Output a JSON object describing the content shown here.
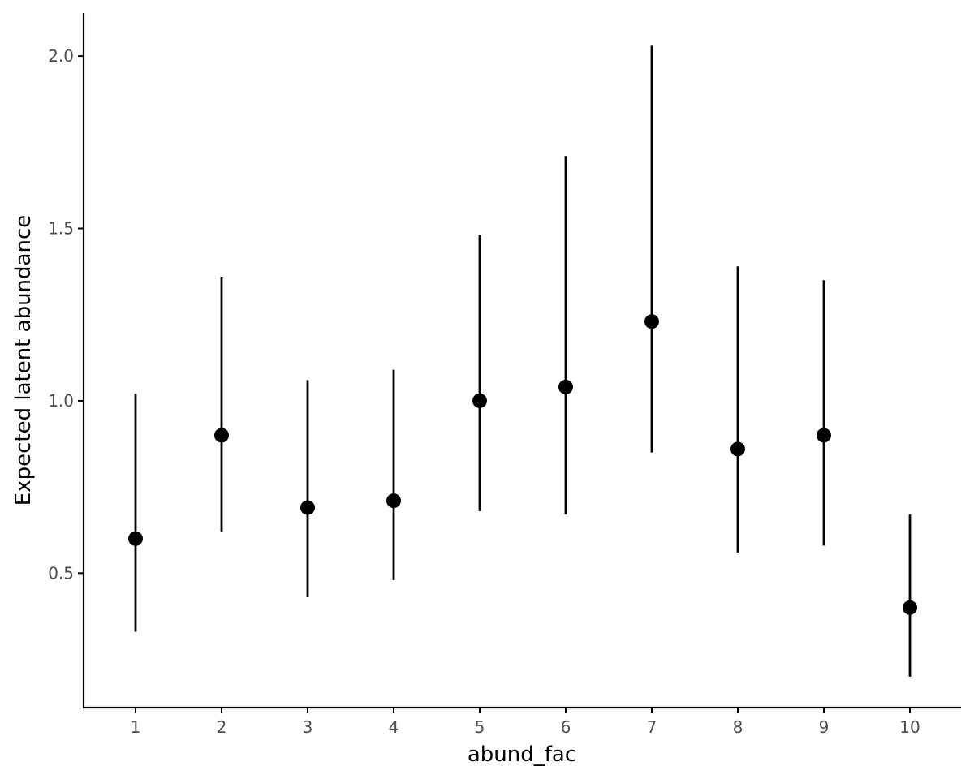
{
  "chart_data": {
    "type": "scatter",
    "subtype": "pointrange",
    "title": "",
    "xlabel": "abund_fac",
    "ylabel": "Expected latent abundance",
    "x": [
      "1",
      "2",
      "3",
      "4",
      "5",
      "6",
      "7",
      "8",
      "9",
      "10"
    ],
    "series": [
      {
        "values": [
          0.6,
          0.9,
          0.69,
          0.71,
          1.0,
          1.04,
          1.23,
          0.86,
          0.9,
          0.4
        ],
        "lower": [
          0.33,
          0.62,
          0.43,
          0.48,
          0.68,
          0.67,
          0.85,
          0.56,
          0.58,
          0.2
        ],
        "upper": [
          1.02,
          1.36,
          1.06,
          1.09,
          1.48,
          1.71,
          2.03,
          1.39,
          1.35,
          0.67
        ]
      }
    ],
    "yticks": [
      "0.5",
      "1.0",
      "1.5",
      "2.0"
    ],
    "ylim": [
      0.11,
      2.125
    ],
    "grid": false,
    "legend": "none",
    "colors": {
      "point": "#000000",
      "axis": "#000000",
      "tick_text": "#4d4d4d"
    }
  }
}
